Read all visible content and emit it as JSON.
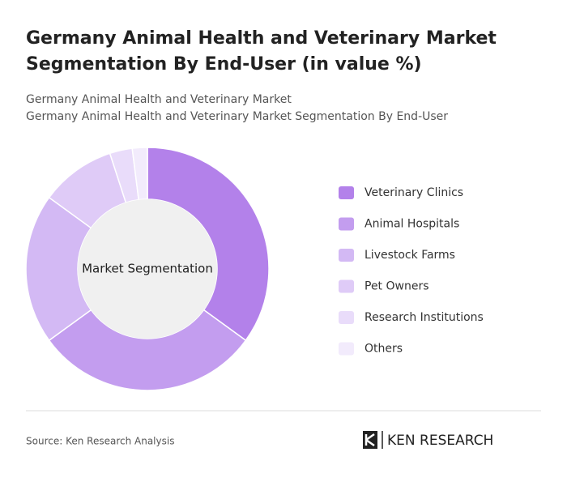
{
  "chart_data": {
    "type": "donut",
    "title": [
      "Germany Animal Health and Veterinary Market",
      "Segmentation By End-User (in value %)"
    ],
    "subtitle": [
      "Germany Animal Health and Veterinary Market",
      "Germany Animal Health and Veterinary Market Segmentation By End-User"
    ],
    "center_label": "Market Segmentation",
    "categories": [
      "Veterinary Clinics",
      "Animal Hospitals",
      "Livestock Farms",
      "Pet Owners",
      "Research Institutions",
      "Others"
    ],
    "values": [
      35,
      30,
      20,
      10,
      3,
      2
    ],
    "colors": [
      "#b381ea",
      "#c39def",
      "#d3b9f4",
      "#dfcbf7",
      "#e9dcfa",
      "#f2ebfc"
    ]
  },
  "source": "Source: Ken Research Analysis",
  "brand": "KEN RESEARCH"
}
